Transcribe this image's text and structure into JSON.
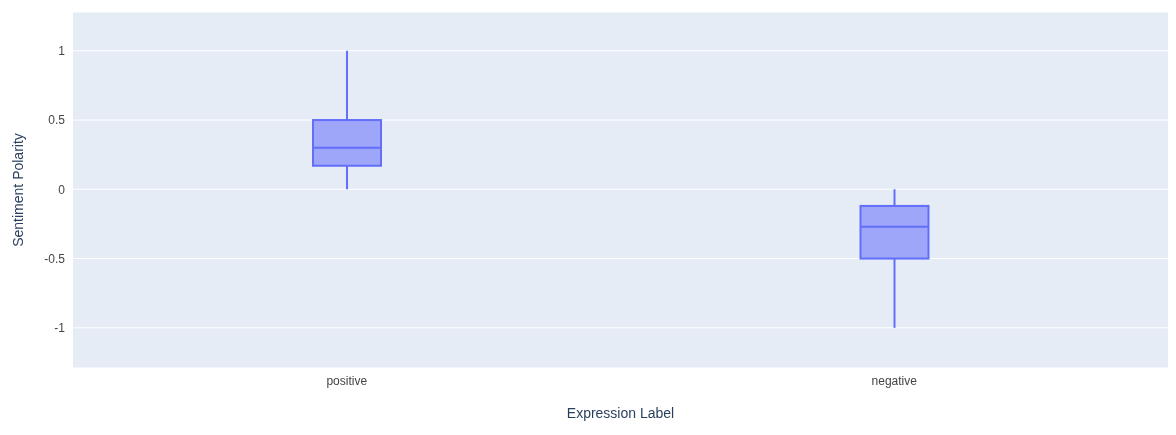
{
  "chart_data": {
    "type": "box",
    "xlabel": "Expression Label",
    "ylabel": "Sentiment Polarity",
    "categories": [
      "positive",
      "negative"
    ],
    "boxes": [
      {
        "low": 0,
        "q1": 0.17,
        "median": 0.3,
        "q3": 0.5,
        "high": 1
      },
      {
        "low": -1,
        "q1": -0.5,
        "median": -0.27,
        "q3": -0.12,
        "high": 0
      }
    ],
    "color": "#636efa",
    "ylim": [
      -1.29,
      1.28
    ],
    "yticks": [
      -1,
      -0.5,
      0,
      0.5,
      1
    ],
    "grid": "y"
  }
}
